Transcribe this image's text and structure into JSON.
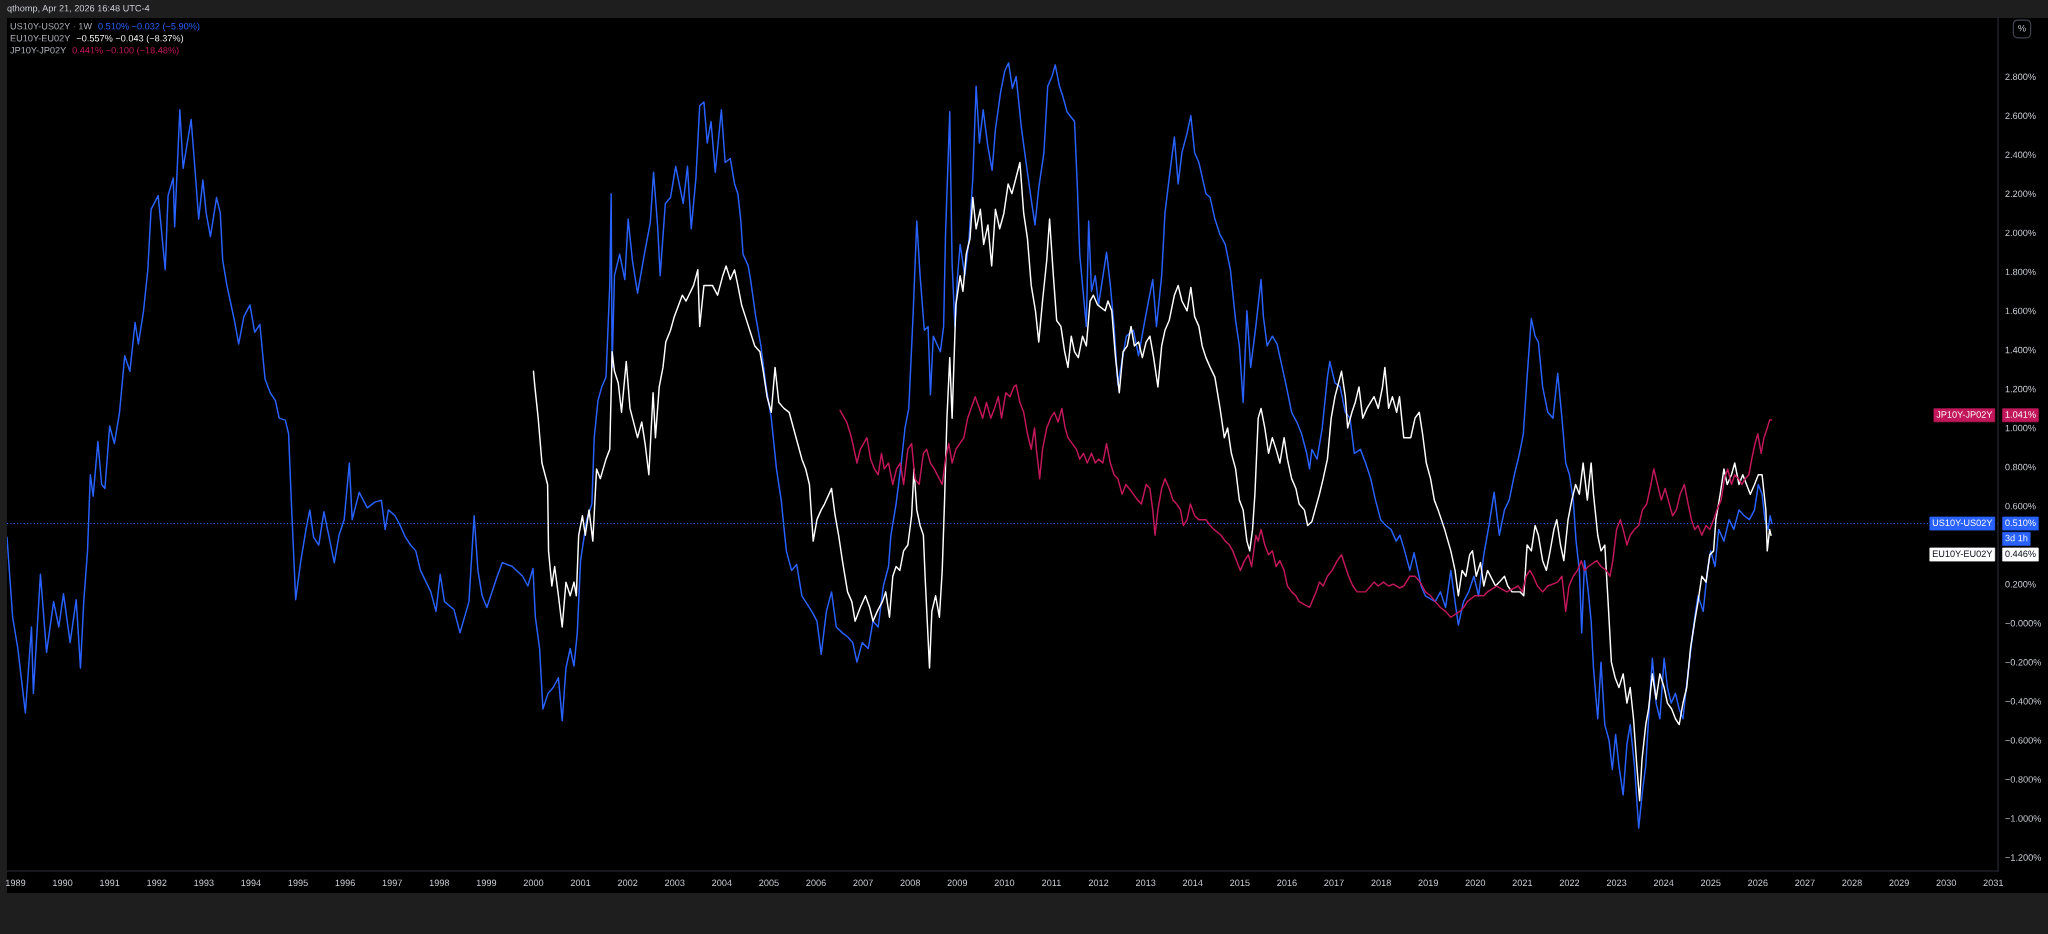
{
  "chart_data": {
    "type": "line",
    "legend": "right",
    "annotations": [
      "qthomp, Apr 21, 2026 16:48 UTC-4",
      "US10Y-US02Y · 1W",
      "0.510% −0.032 (−5.90%)",
      "EU10Y-EU02Y",
      "−0.557% −0.043 (−8.37%)",
      "JP10Y-JP02Y",
      "0.441% −0.100 (−18.48%)",
      "0.510%",
      "0.446%",
      "1.041%",
      "3d 1h",
      "%"
    ],
    "xlim": [
      1988.82,
      2031.1
    ],
    "ylim": [
      -1.27,
      3.1
    ],
    "xticks": [
      1989,
      1990,
      1991,
      1992,
      1993,
      1994,
      1995,
      1996,
      1997,
      1998,
      1999,
      2000,
      2001,
      2002,
      2003,
      2004,
      2005,
      2006,
      2007,
      2008,
      2009,
      2010,
      2011,
      2012,
      2013,
      2014,
      2015,
      2016,
      2017,
      2018,
      2019,
      2020,
      2021,
      2022,
      2023,
      2024,
      2025,
      2026,
      2027,
      2028,
      2029,
      2030,
      2031
    ],
    "yticks": [
      {
        "value": -1.2,
        "label": "−1.200%"
      },
      {
        "value": -1.0,
        "label": "−1.000%"
      },
      {
        "value": -0.8,
        "label": "−0.800%"
      },
      {
        "value": -0.6,
        "label": "−0.600%"
      },
      {
        "value": -0.4,
        "label": "−0.400%"
      },
      {
        "value": -0.2,
        "label": "−0.200%"
      },
      {
        "value": 0,
        "label": "−0.000%"
      },
      {
        "value": 0.2,
        "label": "0.200%"
      },
      {
        "value": 0.6,
        "label": "0.600%"
      },
      {
        "value": 0.8,
        "label": "0.800%"
      },
      {
        "value": 1.0,
        "label": "1.000%"
      },
      {
        "value": 1.2,
        "label": "1.200%"
      },
      {
        "value": 1.4,
        "label": "1.400%"
      },
      {
        "value": 1.6,
        "label": "1.600%"
      },
      {
        "value": 1.8,
        "label": "1.800%"
      },
      {
        "value": 2.0,
        "label": "2.000%"
      },
      {
        "value": 2.2,
        "label": "2.200%"
      },
      {
        "value": 2.4,
        "label": "2.400%"
      },
      {
        "value": 2.6,
        "label": "2.600%"
      },
      {
        "value": 2.8,
        "label": "2.800%"
      }
    ],
    "ref_lines": [
      {
        "axis": "y",
        "value": 0.51,
        "color": "#2962ff",
        "line_style": "dotted"
      }
    ],
    "series": [
      {
        "name": "US10Y-US02Y",
        "color": "#2962ff",
        "x": [
          1988.82,
          1988.94,
          1989.05,
          1989.21,
          1989.34,
          1989.38,
          1989.53,
          1989.66,
          1989.81,
          1989.92,
          1990.02,
          1990.16,
          1990.29,
          1990.38,
          1990.45,
          1990.53,
          1990.59,
          1990.65,
          1990.75,
          1990.83,
          1990.9,
          1991.0,
          1991.1,
          1991.21,
          1991.32,
          1991.43,
          1991.54,
          1991.61,
          1991.72,
          1991.81,
          1991.88,
          1992.03,
          1992.18,
          1992.24,
          1992.35,
          1992.38,
          1992.49,
          1992.56,
          1992.73,
          1992.81,
          1992.89,
          1992.98,
          1993.05,
          1993.14,
          1993.27,
          1993.35,
          1993.4,
          1993.49,
          1993.57,
          1993.65,
          1993.74,
          1993.85,
          1993.98,
          1994.08,
          1994.19,
          1994.3,
          1994.41,
          1994.52,
          1994.6,
          1994.73,
          1994.8,
          1994.86,
          1994.95,
          1995.06,
          1995.17,
          1995.25,
          1995.33,
          1995.44,
          1995.55,
          1995.66,
          1995.77,
          1995.87,
          1995.98,
          1996.09,
          1996.15,
          1996.3,
          1996.47,
          1996.63,
          1996.77,
          1996.85,
          1996.92,
          1997.06,
          1997.17,
          1997.28,
          1997.39,
          1997.5,
          1997.6,
          1997.82,
          1997.93,
          1998.02,
          1998.11,
          1998.31,
          1998.44,
          1998.63,
          1998.74,
          1998.82,
          1998.91,
          1999.01,
          1999.12,
          1999.23,
          1999.34,
          1999.55,
          1999.77,
          1999.88,
          1999.99,
          2000.04,
          2000.13,
          2000.2,
          2000.31,
          2000.42,
          2000.53,
          2000.61,
          2000.69,
          2000.78,
          2000.86,
          2000.93,
          2001.0,
          2001.13,
          2001.24,
          2001.29,
          2001.37,
          2001.45,
          2001.54,
          2001.62,
          2001.65,
          2001.67,
          2001.72,
          2001.83,
          2001.94,
          2002.01,
          2002.1,
          2002.21,
          2002.37,
          2002.48,
          2002.55,
          2002.64,
          2002.69,
          2002.8,
          2002.91,
          2003.02,
          2003.18,
          2003.27,
          2003.35,
          2003.45,
          2003.53,
          2003.62,
          2003.69,
          2003.77,
          2003.86,
          2003.99,
          2004.07,
          2004.18,
          2004.27,
          2004.34,
          2004.4,
          2004.45,
          2004.56,
          2004.61,
          2004.72,
          2004.83,
          2004.94,
          2005.05,
          2005.16,
          2005.26,
          2005.37,
          2005.48,
          2005.59,
          2005.7,
          2005.91,
          2006.02,
          2006.11,
          2006.22,
          2006.33,
          2006.43,
          2006.56,
          2006.67,
          2006.78,
          2006.87,
          2006.98,
          2007.11,
          2007.21,
          2007.32,
          2007.43,
          2007.54,
          2007.59,
          2007.7,
          2007.81,
          2007.89,
          2007.97,
          2008.06,
          2008.14,
          2008.21,
          2008.3,
          2008.38,
          2008.43,
          2008.49,
          2008.64,
          2008.71,
          2008.75,
          2008.84,
          2008.89,
          2008.95,
          2009.0,
          2009.06,
          2009.16,
          2009.25,
          2009.33,
          2009.4,
          2009.47,
          2009.55,
          2009.65,
          2009.74,
          2009.81,
          2009.92,
          2010.01,
          2010.09,
          2010.17,
          2010.25,
          2010.36,
          2010.46,
          2010.57,
          2010.65,
          2010.73,
          2010.84,
          2010.92,
          2011.01,
          2011.08,
          2011.17,
          2011.24,
          2011.33,
          2011.49,
          2011.55,
          2011.6,
          2011.66,
          2011.74,
          2011.79,
          2011.85,
          2011.93,
          2012.0,
          2012.17,
          2012.25,
          2012.33,
          2012.41,
          2012.59,
          2012.74,
          2012.85,
          2012.96,
          2013.06,
          2013.15,
          2013.23,
          2013.34,
          2013.41,
          2013.5,
          2013.61,
          2013.69,
          2013.77,
          2013.88,
          2013.96,
          2014.04,
          2014.13,
          2014.28,
          2014.37,
          2014.47,
          2014.58,
          2014.69,
          2014.8,
          2014.91,
          2014.99,
          2015.07,
          2015.15,
          2015.23,
          2015.34,
          2015.45,
          2015.5,
          2015.58,
          2015.69,
          2015.79,
          2015.9,
          2015.99,
          2016.1,
          2016.21,
          2016.31,
          2016.42,
          2016.48,
          2016.53,
          2016.64,
          2016.75,
          2016.86,
          2016.91,
          2017.02,
          2017.13,
          2017.24,
          2017.34,
          2017.43,
          2017.56,
          2017.67,
          2017.78,
          2017.88,
          2017.99,
          2018.1,
          2018.21,
          2018.32,
          2018.4,
          2018.5,
          2018.61,
          2018.7,
          2018.85,
          2018.94,
          2019.15,
          2019.26,
          2019.37,
          2019.48,
          2019.57,
          2019.64,
          2019.75,
          2019.86,
          2019.97,
          2020.07,
          2020.18,
          2020.29,
          2020.4,
          2020.51,
          2020.62,
          2020.72,
          2020.83,
          2020.94,
          2021.02,
          2021.1,
          2021.19,
          2021.27,
          2021.34,
          2021.43,
          2021.54,
          2021.65,
          2021.75,
          2021.84,
          2021.92,
          2022.0,
          2022.08,
          2022.14,
          2022.21,
          2022.26,
          2022.32,
          2022.4,
          2022.46,
          2022.51,
          2022.6,
          2022.67,
          2022.75,
          2022.84,
          2022.91,
          2022.98,
          2023.05,
          2023.14,
          2023.22,
          2023.29,
          2023.38,
          2023.47,
          2023.55,
          2023.62,
          2023.7,
          2023.76,
          2023.84,
          2023.92,
          2024.01,
          2024.08,
          2024.16,
          2024.25,
          2024.33,
          2024.41,
          2024.49,
          2024.57,
          2024.66,
          2024.73,
          2024.84,
          2024.93,
          2025.0,
          2025.09,
          2025.17,
          2025.28,
          2025.39,
          2025.49,
          2025.6,
          2025.71,
          2025.82,
          2025.93,
          2026.01,
          2026.09,
          2026.15,
          2026.22,
          2026.26,
          2026.3
        ],
        "values": [
          0.44,
          0.03,
          -0.13,
          -0.46,
          -0.02,
          -0.36,
          0.25,
          -0.15,
          0.11,
          -0.02,
          0.15,
          -0.1,
          0.12,
          -0.23,
          0.11,
          0.37,
          0.76,
          0.65,
          0.93,
          0.71,
          0.69,
          1.01,
          0.92,
          1.08,
          1.37,
          1.29,
          1.54,
          1.43,
          1.6,
          1.81,
          2.12,
          2.19,
          1.81,
          2.19,
          2.28,
          2.03,
          2.63,
          2.33,
          2.58,
          2.33,
          2.07,
          2.27,
          2.1,
          1.98,
          2.18,
          2.1,
          1.86,
          1.73,
          1.64,
          1.55,
          1.43,
          1.57,
          1.63,
          1.49,
          1.53,
          1.25,
          1.18,
          1.14,
          1.05,
          1.04,
          0.97,
          0.61,
          0.12,
          0.32,
          0.48,
          0.58,
          0.44,
          0.4,
          0.57,
          0.44,
          0.31,
          0.45,
          0.53,
          0.82,
          0.53,
          0.67,
          0.59,
          0.62,
          0.63,
          0.48,
          0.58,
          0.55,
          0.5,
          0.44,
          0.4,
          0.37,
          0.27,
          0.16,
          0.06,
          0.25,
          0.11,
          0.07,
          -0.05,
          0.11,
          0.55,
          0.27,
          0.14,
          0.08,
          0.16,
          0.24,
          0.31,
          0.29,
          0.24,
          0.19,
          0.28,
          0.03,
          -0.13,
          -0.44,
          -0.36,
          -0.33,
          -0.28,
          -0.5,
          -0.23,
          -0.13,
          -0.22,
          -0.05,
          0.32,
          0.53,
          0.61,
          0.95,
          1.14,
          1.21,
          1.26,
          1.73,
          2.2,
          1.31,
          1.78,
          1.89,
          1.76,
          2.07,
          1.86,
          1.69,
          1.91,
          2.05,
          2.31,
          2.02,
          1.78,
          2.15,
          2.18,
          2.34,
          2.15,
          2.34,
          2.02,
          2.28,
          2.65,
          2.67,
          2.46,
          2.57,
          2.31,
          2.63,
          2.36,
          2.38,
          2.25,
          2.2,
          2.07,
          1.89,
          1.83,
          1.76,
          1.57,
          1.42,
          1.21,
          1.05,
          0.79,
          0.63,
          0.37,
          0.27,
          0.3,
          0.14,
          0.06,
          0.01,
          -0.16,
          0.06,
          0.16,
          -0.02,
          -0.05,
          -0.07,
          -0.1,
          -0.2,
          -0.1,
          -0.13,
          0.01,
          -0.02,
          0.19,
          0.29,
          0.45,
          0.61,
          0.82,
          1.0,
          1.1,
          1.57,
          2.06,
          1.78,
          1.5,
          1.52,
          1.17,
          1.47,
          1.39,
          1.52,
          1.99,
          2.62,
          1.84,
          1.52,
          1.76,
          1.94,
          1.78,
          1.97,
          2.28,
          2.75,
          2.46,
          2.63,
          2.44,
          2.32,
          2.53,
          2.72,
          2.83,
          2.87,
          2.74,
          2.8,
          2.54,
          2.36,
          2.17,
          2.04,
          2.23,
          2.41,
          2.75,
          2.8,
          2.86,
          2.75,
          2.7,
          2.62,
          2.57,
          2.23,
          1.89,
          1.73,
          1.52,
          2.06,
          1.7,
          1.78,
          1.63,
          1.9,
          1.73,
          1.52,
          1.22,
          1.47,
          1.5,
          1.37,
          1.52,
          1.65,
          1.76,
          1.52,
          1.78,
          2.1,
          2.28,
          2.49,
          2.25,
          2.41,
          2.51,
          2.6,
          2.41,
          2.36,
          2.2,
          2.18,
          2.07,
          1.99,
          1.94,
          1.81,
          1.55,
          1.42,
          1.13,
          1.6,
          1.31,
          1.52,
          1.76,
          1.57,
          1.42,
          1.47,
          1.43,
          1.31,
          1.21,
          1.08,
          1.03,
          0.97,
          0.87,
          0.79,
          0.89,
          0.84,
          1.0,
          1.26,
          1.34,
          1.23,
          1.21,
          1.08,
          1.05,
          0.87,
          0.89,
          0.82,
          0.74,
          0.63,
          0.53,
          0.5,
          0.48,
          0.42,
          0.45,
          0.37,
          0.27,
          0.36,
          0.19,
          0.14,
          0.11,
          0.16,
          0.08,
          0.27,
          0.11,
          -0.01,
          0.11,
          0.16,
          0.24,
          0.14,
          0.35,
          0.5,
          0.67,
          0.45,
          0.58,
          0.63,
          0.76,
          0.87,
          0.97,
          1.26,
          1.56,
          1.47,
          1.44,
          1.21,
          1.08,
          1.05,
          1.28,
          1.05,
          0.82,
          0.76,
          0.63,
          0.42,
          0.27,
          -0.05,
          0.32,
          0.16,
          0.01,
          -0.23,
          -0.49,
          -0.2,
          -0.52,
          -0.6,
          -0.75,
          -0.57,
          -0.73,
          -0.88,
          -0.62,
          -0.52,
          -0.73,
          -1.05,
          -0.86,
          -0.73,
          -0.41,
          -0.18,
          -0.41,
          -0.49,
          -0.18,
          -0.33,
          -0.41,
          -0.36,
          -0.44,
          -0.49,
          -0.31,
          -0.15,
          0.03,
          0.14,
          0.06,
          0.27,
          0.37,
          0.29,
          0.48,
          0.42,
          0.53,
          0.48,
          0.58,
          0.55,
          0.53,
          0.58,
          0.71,
          0.66,
          0.53,
          0.48,
          0.55,
          0.51
        ]
      },
      {
        "name": "EU10Y-EU02Y",
        "color": "#ffffff",
        "x": [
          2000.0,
          2000.03,
          2000.1,
          2000.18,
          2000.3,
          2000.32,
          2000.39,
          2000.45,
          2000.53,
          2000.61,
          2000.69,
          2000.78,
          2000.86,
          2000.91,
          2000.96,
          2001.04,
          2001.1,
          2001.18,
          2001.26,
          2001.34,
          2001.42,
          2001.54,
          2001.62,
          2001.67,
          2001.72,
          2001.8,
          2001.87,
          2001.97,
          2002.05,
          2002.21,
          2002.3,
          2002.37,
          2002.45,
          2002.54,
          2002.59,
          2002.67,
          2002.75,
          2002.81,
          2002.91,
          2002.99,
          2003.16,
          2003.24,
          2003.4,
          2003.49,
          2003.53,
          2003.62,
          2003.8,
          2003.91,
          2004.02,
          2004.09,
          2004.18,
          2004.27,
          2004.34,
          2004.42,
          2004.5,
          2004.7,
          2004.81,
          2004.88,
          2004.96,
          2005.05,
          2005.13,
          2005.21,
          2005.32,
          2005.43,
          2005.61,
          2005.7,
          2005.78,
          2005.86,
          2005.94,
          2006.02,
          2006.11,
          2006.18,
          2006.33,
          2006.4,
          2006.48,
          2006.56,
          2006.67,
          2006.76,
          2006.83,
          2006.94,
          2007.05,
          2007.14,
          2007.21,
          2007.3,
          2007.41,
          2007.48,
          2007.56,
          2007.63,
          2007.7,
          2007.78,
          2007.86,
          2007.95,
          2008.03,
          2008.08,
          2008.14,
          2008.21,
          2008.28,
          2008.32,
          2008.41,
          2008.46,
          2008.54,
          2008.62,
          2008.68,
          2008.73,
          2008.78,
          2008.84,
          2008.89,
          2008.97,
          2009.06,
          2009.12,
          2009.19,
          2009.27,
          2009.33,
          2009.4,
          2009.49,
          2009.56,
          2009.65,
          2009.73,
          2009.81,
          2009.9,
          2009.99,
          2010.08,
          2010.16,
          2010.33,
          2010.41,
          2010.49,
          2010.57,
          2010.66,
          2010.73,
          2010.81,
          2010.9,
          2010.96,
          2011.04,
          2011.11,
          2011.2,
          2011.28,
          2011.35,
          2011.42,
          2011.49,
          2011.57,
          2011.66,
          2011.74,
          2011.82,
          2011.89,
          2011.98,
          2012.14,
          2012.2,
          2012.28,
          2012.36,
          2012.44,
          2012.52,
          2012.61,
          2012.69,
          2012.76,
          2012.85,
          2012.93,
          2013.01,
          2013.09,
          2013.17,
          2013.26,
          2013.34,
          2013.41,
          2013.5,
          2013.61,
          2013.69,
          2013.77,
          2013.88,
          2013.96,
          2014.04,
          2014.13,
          2014.2,
          2014.28,
          2014.37,
          2014.47,
          2014.58,
          2014.67,
          2014.74,
          2014.82,
          2014.91,
          2014.99,
          2015.07,
          2015.15,
          2015.21,
          2015.27,
          2015.32,
          2015.39,
          2015.45,
          2015.53,
          2015.61,
          2015.69,
          2015.77,
          2015.85,
          2015.94,
          2016.01,
          2016.1,
          2016.19,
          2016.26,
          2016.37,
          2016.44,
          2016.53,
          2016.69,
          2016.77,
          2016.86,
          2016.94,
          2017.02,
          2017.16,
          2017.24,
          2017.29,
          2017.38,
          2017.45,
          2017.53,
          2017.61,
          2017.7,
          2017.85,
          2017.94,
          2018.03,
          2018.08,
          2018.16,
          2018.24,
          2018.33,
          2018.39,
          2018.48,
          2018.63,
          2018.72,
          2018.81,
          2018.88,
          2018.96,
          2019.05,
          2019.13,
          2019.21,
          2019.35,
          2019.42,
          2019.48,
          2019.57,
          2019.64,
          2019.72,
          2019.8,
          2019.88,
          2019.94,
          2020.02,
          2020.11,
          2020.18,
          2020.26,
          2020.43,
          2020.51,
          2020.62,
          2020.69,
          2020.78,
          2020.95,
          2021.03,
          2021.1,
          2021.19,
          2021.27,
          2021.34,
          2021.43,
          2021.51,
          2021.59,
          2021.67,
          2021.73,
          2021.81,
          2021.88,
          2021.97,
          2022.05,
          2022.13,
          2022.21,
          2022.29,
          2022.38,
          2022.46,
          2022.51,
          2022.6,
          2022.67,
          2022.75,
          2022.82,
          2022.89,
          2022.97,
          2023.05,
          2023.14,
          2023.22,
          2023.29,
          2023.36,
          2023.43,
          2023.49,
          2023.54,
          2023.62,
          2023.68,
          2023.76,
          2023.84,
          2023.92,
          2024.01,
          2024.08,
          2024.17,
          2024.25,
          2024.33,
          2024.41,
          2024.49,
          2024.57,
          2024.66,
          2024.73,
          2024.81,
          2024.9,
          2024.98,
          2025.06,
          2025.11,
          2025.2,
          2025.28,
          2025.35,
          2025.44,
          2025.51,
          2025.6,
          2025.68,
          2025.76,
          2025.84,
          2025.93,
          2026.01,
          2026.09,
          2026.17,
          2026.2,
          2026.25,
          2026.28
        ],
        "values": [
          1.29,
          1.21,
          1.05,
          0.82,
          0.71,
          0.37,
          0.19,
          0.29,
          0.14,
          -0.02,
          0.21,
          0.14,
          0.21,
          0.14,
          0.45,
          0.55,
          0.45,
          0.58,
          0.42,
          0.79,
          0.74,
          0.84,
          0.89,
          1.39,
          1.29,
          1.23,
          1.08,
          1.34,
          1.1,
          0.95,
          1.03,
          0.92,
          0.76,
          1.18,
          0.95,
          1.21,
          1.31,
          1.44,
          1.5,
          1.57,
          1.68,
          1.65,
          1.73,
          1.81,
          1.52,
          1.73,
          1.73,
          1.68,
          1.78,
          1.83,
          1.76,
          1.81,
          1.73,
          1.63,
          1.57,
          1.42,
          1.39,
          1.29,
          1.16,
          1.08,
          1.31,
          1.13,
          1.1,
          1.08,
          0.92,
          0.84,
          0.79,
          0.71,
          0.42,
          0.53,
          0.58,
          0.61,
          0.69,
          0.56,
          0.45,
          0.32,
          0.16,
          0.11,
          0.01,
          0.08,
          0.14,
          0.08,
          0.01,
          0.06,
          0.11,
          0.16,
          0.03,
          0.24,
          0.29,
          0.27,
          0.37,
          0.4,
          0.55,
          0.79,
          0.58,
          0.5,
          0.45,
          0.22,
          -0.23,
          0.06,
          0.14,
          0.03,
          0.27,
          0.63,
          1.05,
          1.36,
          1.05,
          1.63,
          1.78,
          1.7,
          1.89,
          1.97,
          2.18,
          2.02,
          2.12,
          1.94,
          2.04,
          1.83,
          2.12,
          2.02,
          2.1,
          2.25,
          2.2,
          2.36,
          2.1,
          1.97,
          1.73,
          1.6,
          1.44,
          1.65,
          1.86,
          2.07,
          1.78,
          1.55,
          1.52,
          1.39,
          1.31,
          1.47,
          1.39,
          1.36,
          1.47,
          1.42,
          1.65,
          1.68,
          1.63,
          1.6,
          1.65,
          1.6,
          1.36,
          1.18,
          1.39,
          1.42,
          1.52,
          1.42,
          1.44,
          1.36,
          1.44,
          1.47,
          1.36,
          1.21,
          1.42,
          1.5,
          1.55,
          1.68,
          1.73,
          1.65,
          1.6,
          1.72,
          1.57,
          1.52,
          1.42,
          1.36,
          1.31,
          1.26,
          1.1,
          0.95,
          1.0,
          0.87,
          0.79,
          0.63,
          0.58,
          0.42,
          0.37,
          0.48,
          0.66,
          1.05,
          1.1,
          1.0,
          0.87,
          0.95,
          0.89,
          0.82,
          0.95,
          0.84,
          0.74,
          0.69,
          0.61,
          0.58,
          0.5,
          0.52,
          0.66,
          0.74,
          0.84,
          1.05,
          1.16,
          1.29,
          1.16,
          1.0,
          1.08,
          1.13,
          1.21,
          1.05,
          1.1,
          1.16,
          1.1,
          1.21,
          1.31,
          1.1,
          1.16,
          1.08,
          1.16,
          0.95,
          0.95,
          1.05,
          1.08,
          0.97,
          0.82,
          0.74,
          0.63,
          0.58,
          0.48,
          0.42,
          0.37,
          0.27,
          0.14,
          0.27,
          0.24,
          0.35,
          0.37,
          0.24,
          0.31,
          0.19,
          0.27,
          0.19,
          0.21,
          0.24,
          0.19,
          0.16,
          0.16,
          0.14,
          0.4,
          0.37,
          0.5,
          0.45,
          0.32,
          0.27,
          0.37,
          0.48,
          0.53,
          0.4,
          0.32,
          0.53,
          0.63,
          0.71,
          0.66,
          0.82,
          0.63,
          0.82,
          0.66,
          0.45,
          0.37,
          0.4,
          0.11,
          -0.2,
          -0.28,
          -0.33,
          -0.26,
          -0.41,
          -0.33,
          -0.49,
          -0.73,
          -0.91,
          -0.7,
          -0.52,
          -0.44,
          -0.26,
          -0.39,
          -0.26,
          -0.33,
          -0.41,
          -0.44,
          -0.49,
          -0.52,
          -0.41,
          -0.33,
          -0.13,
          0.01,
          0.11,
          0.24,
          0.21,
          0.35,
          0.37,
          0.53,
          0.66,
          0.79,
          0.71,
          0.76,
          0.82,
          0.71,
          0.76,
          0.71,
          0.66,
          0.71,
          0.76,
          0.76,
          0.58,
          0.37,
          0.48,
          0.45
        ]
      },
      {
        "name": "JP10Y-JP02Y",
        "color": "#c2185b",
        "x": [
          2006.51,
          2006.65,
          2006.73,
          2006.78,
          2006.87,
          2006.94,
          2007.08,
          2007.16,
          2007.24,
          2007.32,
          2007.39,
          2007.45,
          2007.54,
          2007.63,
          2007.71,
          2007.79,
          2007.86,
          2007.95,
          2008.03,
          2008.1,
          2008.19,
          2008.28,
          2008.35,
          2008.43,
          2008.51,
          2008.68,
          2008.75,
          2008.82,
          2008.89,
          2008.97,
          2009.14,
          2009.22,
          2009.38,
          2009.47,
          2009.54,
          2009.62,
          2009.71,
          2009.79,
          2009.87,
          2009.94,
          2010.03,
          2010.12,
          2010.2,
          2010.25,
          2010.33,
          2010.41,
          2010.49,
          2010.57,
          2010.64,
          2010.68,
          2010.75,
          2010.81,
          2010.9,
          2010.98,
          2011.06,
          2011.14,
          2011.22,
          2011.29,
          2011.35,
          2011.53,
          2011.6,
          2011.68,
          2011.76,
          2011.85,
          2011.93,
          2012.0,
          2012.09,
          2012.17,
          2012.25,
          2012.33,
          2012.41,
          2012.5,
          2012.58,
          2012.65,
          2012.83,
          2012.91,
          2013.01,
          2013.09,
          2013.15,
          2013.2,
          2013.26,
          2013.34,
          2013.41,
          2013.5,
          2013.58,
          2013.66,
          2013.74,
          2013.8,
          2013.88,
          2013.95,
          2014.04,
          2014.13,
          2014.28,
          2014.37,
          2014.45,
          2014.6,
          2014.69,
          2014.78,
          2014.85,
          2015.01,
          2015.1,
          2015.18,
          2015.25,
          2015.34,
          2015.39,
          2015.45,
          2015.53,
          2015.61,
          2015.69,
          2015.77,
          2015.85,
          2015.94,
          2016.01,
          2016.1,
          2016.19,
          2016.26,
          2016.48,
          2016.62,
          2016.69,
          2016.77,
          2016.86,
          2016.96,
          2017.07,
          2017.16,
          2017.24,
          2017.31,
          2017.4,
          2017.49,
          2017.67,
          2017.78,
          2017.85,
          2017.94,
          2018.05,
          2018.16,
          2018.26,
          2018.39,
          2018.48,
          2018.61,
          2018.72,
          2018.83,
          2018.94,
          2019.05,
          2019.15,
          2019.26,
          2019.37,
          2019.48,
          2019.67,
          2019.75,
          2019.83,
          2019.99,
          2020.18,
          2020.26,
          2020.45,
          2020.67,
          2020.91,
          2021.0,
          2021.08,
          2021.16,
          2021.23,
          2021.32,
          2021.43,
          2021.54,
          2021.75,
          2021.84,
          2021.92,
          2021.99,
          2022.08,
          2022.17,
          2022.25,
          2022.32,
          2022.4,
          2022.58,
          2022.67,
          2022.78,
          2022.86,
          2022.92,
          2023.0,
          2023.08,
          2023.14,
          2023.22,
          2023.29,
          2023.38,
          2023.47,
          2023.55,
          2023.64,
          2023.73,
          2023.79,
          2023.87,
          2023.95,
          2024.03,
          2024.12,
          2024.19,
          2024.27,
          2024.35,
          2024.44,
          2024.52,
          2024.59,
          2024.66,
          2024.73,
          2024.81,
          2024.9,
          2024.98,
          2025.06,
          2025.13,
          2025.22,
          2025.29,
          2025.36,
          2025.44,
          2025.51,
          2025.59,
          2025.66,
          2025.73,
          2025.81,
          2025.87,
          2025.94,
          2026.0,
          2026.07,
          2026.13,
          2026.2,
          2026.25,
          2026.29
        ],
        "values": [
          1.09,
          1.03,
          0.97,
          0.92,
          0.82,
          0.89,
          0.95,
          0.84,
          0.79,
          0.76,
          0.87,
          0.79,
          0.82,
          0.71,
          0.79,
          0.82,
          0.71,
          0.89,
          0.92,
          0.74,
          0.71,
          0.87,
          0.89,
          0.82,
          0.79,
          0.71,
          0.84,
          0.92,
          0.82,
          0.89,
          0.95,
          1.05,
          1.16,
          1.1,
          1.05,
          1.13,
          1.05,
          1.1,
          1.16,
          1.05,
          1.18,
          1.16,
          1.21,
          1.22,
          1.13,
          1.08,
          0.97,
          0.89,
          1.0,
          0.89,
          0.74,
          0.89,
          1.0,
          1.05,
          1.08,
          1.03,
          1.1,
          1.0,
          0.95,
          0.89,
          0.84,
          0.87,
          0.82,
          0.87,
          0.82,
          0.84,
          0.82,
          0.92,
          0.82,
          0.76,
          0.74,
          0.66,
          0.71,
          0.69,
          0.63,
          0.61,
          0.71,
          0.69,
          0.58,
          0.45,
          0.58,
          0.69,
          0.74,
          0.69,
          0.63,
          0.61,
          0.58,
          0.5,
          0.53,
          0.61,
          0.55,
          0.53,
          0.53,
          0.5,
          0.48,
          0.45,
          0.42,
          0.4,
          0.37,
          0.27,
          0.32,
          0.35,
          0.29,
          0.45,
          0.42,
          0.48,
          0.4,
          0.35,
          0.37,
          0.29,
          0.32,
          0.27,
          0.19,
          0.16,
          0.14,
          0.11,
          0.08,
          0.16,
          0.21,
          0.19,
          0.24,
          0.27,
          0.32,
          0.35,
          0.29,
          0.24,
          0.19,
          0.16,
          0.16,
          0.19,
          0.21,
          0.19,
          0.21,
          0.19,
          0.2,
          0.18,
          0.19,
          0.24,
          0.24,
          0.21,
          0.16,
          0.14,
          0.11,
          0.08,
          0.06,
          0.03,
          0.06,
          0.08,
          0.11,
          0.14,
          0.14,
          0.16,
          0.19,
          0.16,
          0.19,
          0.16,
          0.24,
          0.27,
          0.24,
          0.19,
          0.16,
          0.19,
          0.21,
          0.24,
          0.06,
          0.19,
          0.24,
          0.27,
          0.32,
          0.27,
          0.29,
          0.32,
          0.29,
          0.27,
          0.24,
          0.32,
          0.48,
          0.53,
          0.48,
          0.4,
          0.45,
          0.48,
          0.5,
          0.58,
          0.61,
          0.71,
          0.79,
          0.71,
          0.63,
          0.69,
          0.61,
          0.55,
          0.58,
          0.66,
          0.71,
          0.61,
          0.53,
          0.48,
          0.5,
          0.45,
          0.5,
          0.48,
          0.53,
          0.58,
          0.63,
          0.74,
          0.79,
          0.71,
          0.76,
          0.74,
          0.71,
          0.74,
          0.76,
          0.84,
          0.92,
          0.97,
          0.87,
          0.95,
          1.0,
          1.04,
          1.04
        ]
      }
    ]
  }
}
